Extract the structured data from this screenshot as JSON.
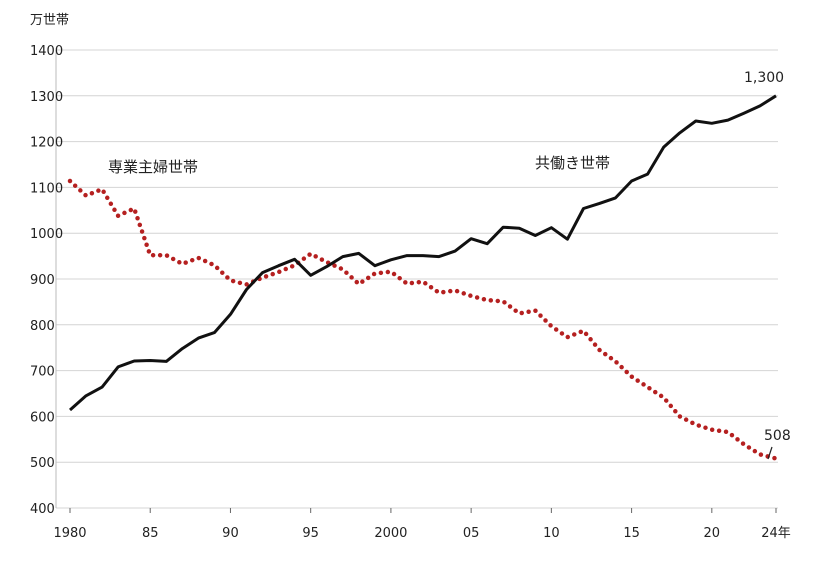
{
  "chart_data": {
    "type": "line",
    "y_unit": "万世帯",
    "ylim": [
      400,
      1400
    ],
    "yticks": [
      400,
      500,
      600,
      700,
      800,
      900,
      1000,
      1100,
      1200,
      1300,
      1400
    ],
    "x_tick_labels": [
      {
        "year": 1980,
        "label": "1980"
      },
      {
        "year": 1985,
        "label": "85"
      },
      {
        "year": 1990,
        "label": "90"
      },
      {
        "year": 1995,
        "label": "95"
      },
      {
        "year": 2000,
        "label": "2000"
      },
      {
        "year": 2005,
        "label": "05"
      },
      {
        "year": 2010,
        "label": "10"
      },
      {
        "year": 2015,
        "label": "15"
      },
      {
        "year": 2020,
        "label": "20"
      },
      {
        "year": 2024,
        "label": "24年"
      }
    ],
    "xlim": [
      1980,
      2024
    ],
    "grid": true,
    "x": [
      1980,
      1981,
      1982,
      1983,
      1984,
      1985,
      1986,
      1987,
      1988,
      1989,
      1990,
      1991,
      1992,
      1993,
      1994,
      1995,
      1996,
      1997,
      1998,
      1999,
      2000,
      2001,
      2002,
      2003,
      2004,
      2005,
      2006,
      2007,
      2008,
      2009,
      2010,
      2011,
      2012,
      2013,
      2014,
      2015,
      2016,
      2017,
      2018,
      2019,
      2020,
      2021,
      2022,
      2023,
      2024
    ],
    "series": [
      {
        "name": "専業主婦世帯",
        "color": "#b52020",
        "style": "dotted",
        "values": [
          1114,
          1082,
          1096,
          1038,
          1054,
          952,
          952,
          933,
          946,
          930,
          897,
          888,
          903,
          915,
          930,
          955,
          937,
          921,
          889,
          912,
          916,
          890,
          894,
          870,
          875,
          863,
          854,
          851,
          825,
          831,
          797,
          773,
          787,
          745,
          720,
          687,
          664,
          641,
          600,
          582,
          571,
          566,
          539,
          517,
          508
        ],
        "end_label": "508"
      },
      {
        "name": "共働き世帯",
        "color": "#111111",
        "style": "solid",
        "values": [
          614,
          645,
          664,
          708,
          721,
          722,
          720,
          748,
          771,
          783,
          823,
          877,
          914,
          929,
          943,
          908,
          927,
          949,
          956,
          929,
          942,
          951,
          951,
          949,
          961,
          988,
          977,
          1013,
          1011,
          995,
          1012,
          987,
          1054,
          1065,
          1077,
          1114,
          1129,
          1188,
          1219,
          1245,
          1240,
          1247,
          1262,
          1278,
          1300
        ],
        "end_label": "1,300"
      }
    ]
  }
}
